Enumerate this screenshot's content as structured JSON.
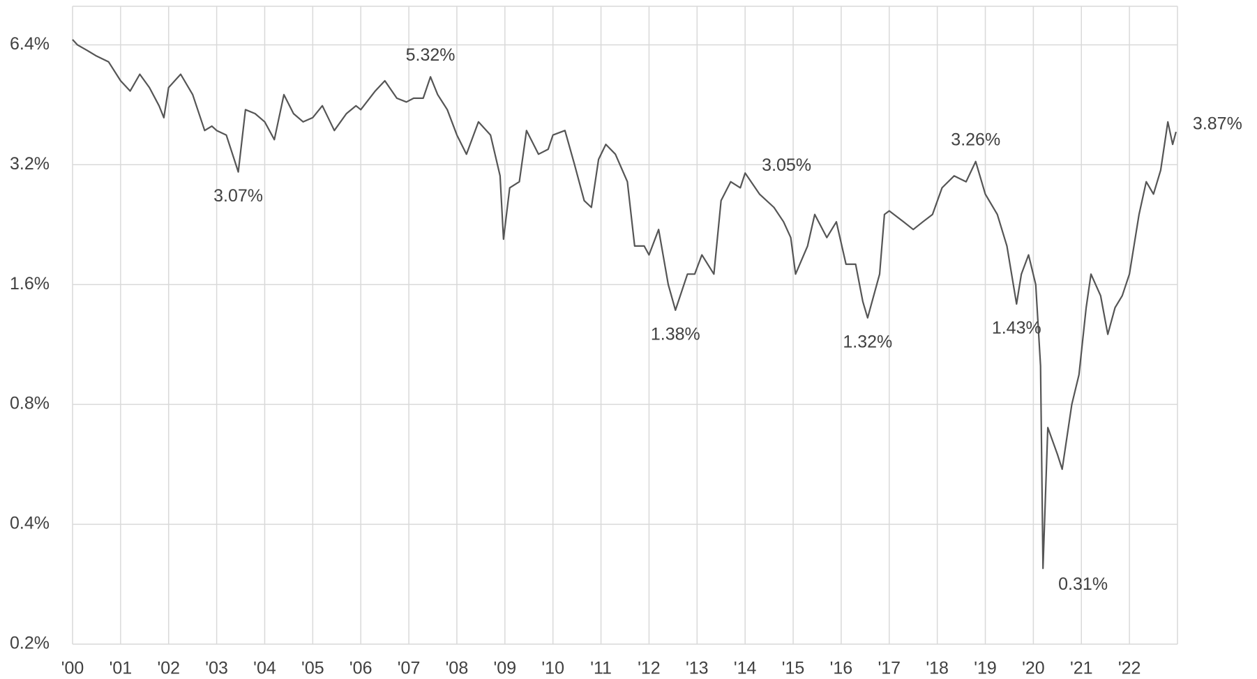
{
  "chart_data": {
    "type": "line",
    "log_y": true,
    "grid": true,
    "xlim": [
      2000,
      2023
    ],
    "ylim": [
      0.2,
      8
    ],
    "xticks": [
      {
        "value": 2000,
        "label": "'00"
      },
      {
        "value": 2001,
        "label": "'01"
      },
      {
        "value": 2002,
        "label": "'02"
      },
      {
        "value": 2003,
        "label": "'03"
      },
      {
        "value": 2004,
        "label": "'04"
      },
      {
        "value": 2005,
        "label": "'05"
      },
      {
        "value": 2006,
        "label": "'06"
      },
      {
        "value": 2007,
        "label": "'07"
      },
      {
        "value": 2008,
        "label": "'08"
      },
      {
        "value": 2009,
        "label": "'09"
      },
      {
        "value": 2010,
        "label": "'10"
      },
      {
        "value": 2011,
        "label": "'11"
      },
      {
        "value": 2012,
        "label": "'12"
      },
      {
        "value": 2013,
        "label": "'13"
      },
      {
        "value": 2014,
        "label": "'14"
      },
      {
        "value": 2015,
        "label": "'15"
      },
      {
        "value": 2016,
        "label": "'16"
      },
      {
        "value": 2017,
        "label": "'17"
      },
      {
        "value": 2018,
        "label": "'18"
      },
      {
        "value": 2019,
        "label": "'19"
      },
      {
        "value": 2020,
        "label": "'20"
      },
      {
        "value": 2021,
        "label": "'21"
      },
      {
        "value": 2022,
        "label": "'22"
      }
    ],
    "yticks": [
      {
        "value": 0.2,
        "label": "0.2%"
      },
      {
        "value": 0.4,
        "label": "0.4%"
      },
      {
        "value": 0.8,
        "label": "0.8%"
      },
      {
        "value": 1.6,
        "label": "1.6%"
      },
      {
        "value": 3.2,
        "label": "3.2%"
      },
      {
        "value": 6.4,
        "label": "6.4%"
      }
    ],
    "series": [
      {
        "color": "#555555",
        "x": [
          2000.0,
          2000.1,
          2000.3,
          2000.5,
          2000.75,
          2001.0,
          2001.2,
          2001.4,
          2001.6,
          2001.8,
          2001.9,
          2002.0,
          2002.25,
          2002.5,
          2002.75,
          2002.9,
          2003.0,
          2003.2,
          2003.45,
          2003.6,
          2003.8,
          2004.0,
          2004.2,
          2004.4,
          2004.6,
          2004.8,
          2005.0,
          2005.2,
          2005.45,
          2005.7,
          2005.9,
          2006.0,
          2006.3,
          2006.5,
          2006.75,
          2006.95,
          2007.1,
          2007.3,
          2007.45,
          2007.6,
          2007.8,
          2008.0,
          2008.2,
          2008.45,
          2008.7,
          2008.9,
          2008.97,
          2009.1,
          2009.3,
          2009.45,
          2009.7,
          2009.9,
          2010.0,
          2010.25,
          2010.45,
          2010.65,
          2010.8,
          2010.95,
          2011.1,
          2011.3,
          2011.55,
          2011.7,
          2011.9,
          2012.0,
          2012.2,
          2012.4,
          2012.55,
          2012.8,
          2012.95,
          2013.1,
          2013.35,
          2013.5,
          2013.7,
          2013.9,
          2014.0,
          2014.3,
          2014.6,
          2014.8,
          2014.95,
          2015.05,
          2015.3,
          2015.45,
          2015.7,
          2015.9,
          2016.1,
          2016.3,
          2016.45,
          2016.55,
          2016.8,
          2016.9,
          2017.0,
          2017.3,
          2017.5,
          2017.7,
          2017.9,
          2018.1,
          2018.35,
          2018.6,
          2018.8,
          2019.0,
          2019.25,
          2019.45,
          2019.65,
          2019.75,
          2019.9,
          2020.05,
          2020.15,
          2020.2,
          2020.3,
          2020.5,
          2020.6,
          2020.8,
          2020.95,
          2021.1,
          2021.2,
          2021.4,
          2021.55,
          2021.7,
          2021.85,
          2022.0,
          2022.2,
          2022.35,
          2022.5,
          2022.65,
          2022.8,
          2022.9,
          2022.97
        ],
        "values": [
          6.6,
          6.4,
          6.2,
          6.0,
          5.8,
          5.2,
          4.9,
          5.4,
          5.0,
          4.5,
          4.2,
          5.0,
          5.4,
          4.8,
          3.9,
          4.0,
          3.9,
          3.8,
          3.07,
          4.4,
          4.3,
          4.1,
          3.7,
          4.8,
          4.3,
          4.1,
          4.2,
          4.5,
          3.9,
          4.3,
          4.5,
          4.4,
          4.9,
          5.2,
          4.7,
          4.6,
          4.7,
          4.7,
          5.32,
          4.8,
          4.4,
          3.8,
          3.4,
          4.1,
          3.8,
          3.0,
          2.08,
          2.8,
          2.9,
          3.9,
          3.4,
          3.5,
          3.8,
          3.9,
          3.2,
          2.6,
          2.5,
          3.3,
          3.6,
          3.4,
          2.9,
          2.0,
          2.0,
          1.9,
          2.2,
          1.6,
          1.38,
          1.7,
          1.7,
          1.9,
          1.7,
          2.6,
          2.9,
          2.8,
          3.05,
          2.7,
          2.5,
          2.3,
          2.1,
          1.7,
          2.0,
          2.4,
          2.1,
          2.3,
          1.8,
          1.8,
          1.45,
          1.32,
          1.7,
          2.4,
          2.45,
          2.3,
          2.2,
          2.3,
          2.4,
          2.8,
          3.0,
          2.9,
          3.26,
          2.7,
          2.4,
          2.0,
          1.43,
          1.7,
          1.9,
          1.6,
          1.0,
          0.31,
          0.7,
          0.6,
          0.55,
          0.8,
          0.95,
          1.4,
          1.7,
          1.5,
          1.2,
          1.4,
          1.5,
          1.7,
          2.4,
          2.9,
          2.7,
          3.1,
          4.1,
          3.6,
          3.87
        ]
      }
    ],
    "annotations": [
      {
        "x": 2003.45,
        "value": 3.07,
        "label": "3.07%",
        "placement": "below"
      },
      {
        "x": 2007.45,
        "value": 5.32,
        "label": "5.32%",
        "placement": "above"
      },
      {
        "x": 2012.55,
        "value": 1.38,
        "label": "1.38%",
        "placement": "below"
      },
      {
        "x": 2014.0,
        "value": 3.05,
        "label": "3.05%",
        "placement": "right"
      },
      {
        "x": 2016.55,
        "value": 1.32,
        "label": "1.32%",
        "placement": "below"
      },
      {
        "x": 2018.8,
        "value": 3.26,
        "label": "3.26%",
        "placement": "above"
      },
      {
        "x": 2019.65,
        "value": 1.43,
        "label": "1.43%",
        "placement": "below"
      },
      {
        "x": 2020.2,
        "value": 0.31,
        "label": "0.31%",
        "placement": "below-right"
      },
      {
        "x": 2022.97,
        "value": 3.87,
        "label": "3.87%",
        "placement": "right"
      }
    ]
  }
}
